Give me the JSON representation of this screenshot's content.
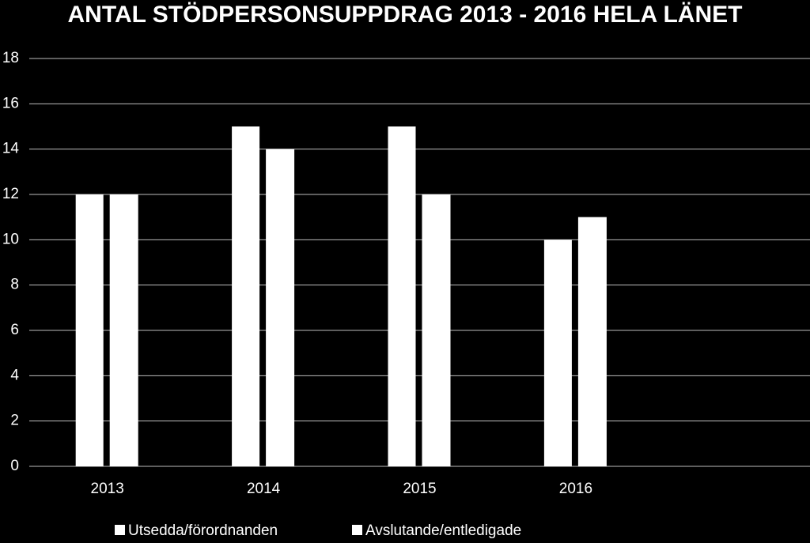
{
  "chart_data": {
    "type": "bar",
    "title": "ANTAL STÖDPERSONSUPPDRAG 2013 - 2016 HELA LÄNET",
    "categories": [
      "2013",
      "2014",
      "2015",
      "2016",
      null
    ],
    "series": [
      {
        "name": "Utsedda/förordnanden",
        "color": "#ffffff",
        "values": [
          12,
          15,
          15,
          10,
          null
        ]
      },
      {
        "name": "Avslutande/entledigade",
        "color": "#ffffff",
        "values": [
          12,
          14,
          12,
          11,
          null
        ]
      }
    ],
    "ylim": [
      0,
      18
    ],
    "yticks": [
      0,
      2,
      4,
      6,
      8,
      10,
      12,
      14,
      16,
      18
    ],
    "grid": true,
    "legend": "bottom"
  }
}
